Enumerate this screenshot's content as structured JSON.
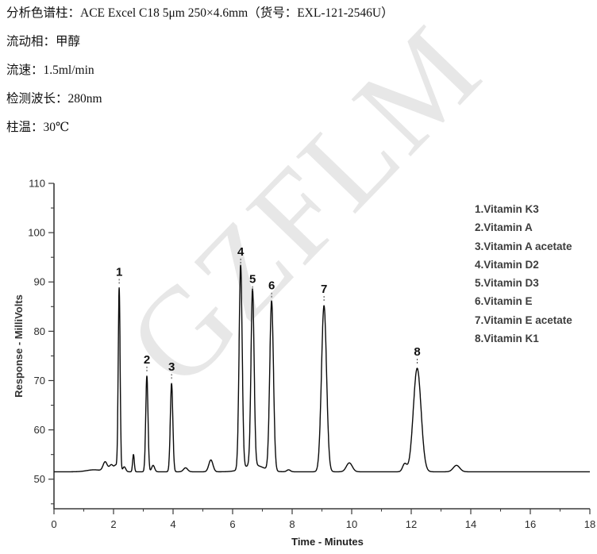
{
  "watermark": "GZFLM",
  "header": {
    "lines": [
      "分析色谱柱：ACE Excel C18 5μm 250×4.6mm（货号：EXL-121-2546U）",
      "流动相：甲醇",
      "流速：1.5ml/min",
      "检测波长：280nm",
      "柱温：30℃"
    ]
  },
  "legend": {
    "items": [
      "1.Vitamin K3",
      "2.Vitamin A",
      "3.Vitamin A acetate",
      "4.Vitamin D2",
      "5.Vitamin D3",
      "6.Vitamin E",
      "7.Vitamin E acetate",
      "8.Vitamin K1"
    ]
  },
  "colors": {
    "trace": "#0a0a0a",
    "axis": "#3a3a3a",
    "tick_text": "#2b2b2b",
    "peak_label": "#111111",
    "watermark": "#e7e7e7"
  },
  "chart_data": {
    "type": "line",
    "title": "",
    "xlabel": "Time - Minutes",
    "ylabel": "Response - MilliVolts",
    "x_axis": {
      "label": "Time - Minutes",
      "range": [
        0,
        18
      ],
      "major_ticks": [
        0,
        2,
        4,
        6,
        8,
        10,
        12,
        14,
        16,
        18
      ],
      "minor_tick_step": 1
    },
    "y_axis": {
      "label": "Response - MilliVolts",
      "range": [
        44,
        110
      ],
      "major_ticks": [
        50,
        60,
        70,
        80,
        90,
        100,
        110
      ],
      "minor_tick_step": 5
    },
    "grid": false,
    "legend_position": "upper-right-outside",
    "baseline_mV": 51.5,
    "peaks": [
      {
        "label": "1",
        "name": "Vitamin K3",
        "time_min": 2.19,
        "apex_mV": 88.7,
        "sigma_min": 0.032
      },
      {
        "label": "2",
        "name": "Vitamin A",
        "time_min": 3.12,
        "apex_mV": 70.9,
        "sigma_min": 0.038
      },
      {
        "label": "3",
        "name": "Vitamin A acetate",
        "time_min": 3.95,
        "apex_mV": 69.4,
        "sigma_min": 0.042
      },
      {
        "label": "4",
        "name": "Vitamin D2",
        "time_min": 6.27,
        "apex_mV": 92.8,
        "sigma_min": 0.052
      },
      {
        "label": "5",
        "name": "Vitamin D3",
        "time_min": 6.67,
        "apex_mV": 87.2,
        "sigma_min": 0.052
      },
      {
        "label": "6",
        "name": "Vitamin E",
        "time_min": 7.31,
        "apex_mV": 85.9,
        "sigma_min": 0.062
      },
      {
        "label": "7",
        "name": "Vitamin E acetate",
        "time_min": 9.07,
        "apex_mV": 85.2,
        "sigma_min": 0.085
      },
      {
        "label": "8",
        "name": "Vitamin K1",
        "time_min": 12.2,
        "apex_mV": 72.5,
        "sigma_min": 0.13
      }
    ],
    "unlabeled_features": [
      {
        "time_min": 1.35,
        "height_mV": 0.4,
        "sigma_min": 0.25
      },
      {
        "time_min": 1.72,
        "height_mV": 1.9,
        "sigma_min": 0.07
      },
      {
        "time_min": 1.93,
        "height_mV": 1.4,
        "sigma_min": 0.07
      },
      {
        "time_min": 2.08,
        "height_mV": 1.2,
        "sigma_min": 0.05
      },
      {
        "time_min": 2.36,
        "height_mV": 1.0,
        "sigma_min": 0.05
      },
      {
        "time_min": 2.67,
        "height_mV": 3.5,
        "sigma_min": 0.028
      },
      {
        "time_min": 3.33,
        "height_mV": 1.3,
        "sigma_min": 0.05
      },
      {
        "time_min": 4.42,
        "height_mV": 0.8,
        "sigma_min": 0.07
      },
      {
        "time_min": 5.27,
        "height_mV": 2.4,
        "sigma_min": 0.07
      },
      {
        "time_min": 6.7,
        "height_mV": 1.4,
        "sigma_min": 0.33
      },
      {
        "time_min": 7.88,
        "height_mV": 0.4,
        "sigma_min": 0.06
      },
      {
        "time_min": 9.92,
        "height_mV": 1.8,
        "sigma_min": 0.1
      },
      {
        "time_min": 11.78,
        "height_mV": 1.6,
        "sigma_min": 0.07
      },
      {
        "time_min": 13.52,
        "height_mV": 1.3,
        "sigma_min": 0.11
      }
    ]
  }
}
